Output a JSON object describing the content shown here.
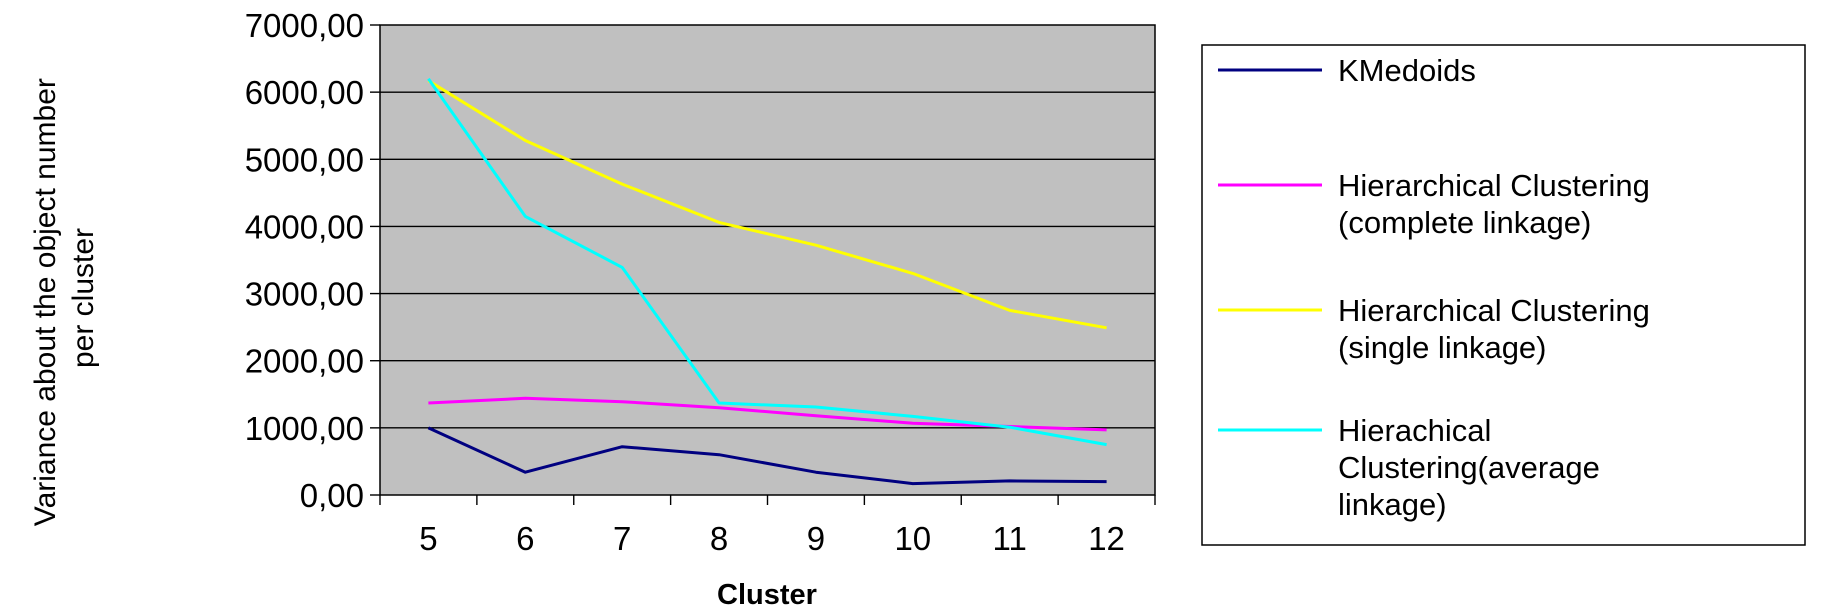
{
  "chart_data": {
    "type": "line",
    "title": "",
    "xlabel": "Cluster",
    "ylabel": [
      "Variance about the object number",
      "per cluster"
    ],
    "x": [
      5,
      6,
      7,
      8,
      9,
      10,
      11,
      12
    ],
    "ylim": [
      0,
      7000
    ],
    "yticks": [
      "0,00",
      "1000,00",
      "2000,00",
      "3000,00",
      "4000,00",
      "5000,00",
      "6000,00",
      "7000,00"
    ],
    "grid": true,
    "plot_background": "#c0c0c0",
    "legend_placement": "right",
    "series": [
      {
        "name": [
          "KMedoids"
        ],
        "color": "#000080",
        "values": [
          1000,
          340,
          720,
          600,
          340,
          170,
          210,
          200
        ]
      },
      {
        "name": [
          "Hierarchical Clustering",
          "(complete linkage)"
        ],
        "color": "#ff00ff",
        "values": [
          1370,
          1440,
          1390,
          1300,
          1180,
          1070,
          1020,
          970
        ]
      },
      {
        "name": [
          "Hierarchical Clustering",
          "(single linkage)"
        ],
        "color": "#ffff00",
        "values": [
          6170,
          5280,
          4630,
          4060,
          3720,
          3300,
          2750,
          2490
        ]
      },
      {
        "name": [
          "Hierachical",
          "Clustering(average",
          "linkage)"
        ],
        "color": "#00ffff",
        "values": [
          6200,
          4150,
          3390,
          1370,
          1310,
          1170,
          1010,
          750
        ]
      }
    ]
  }
}
